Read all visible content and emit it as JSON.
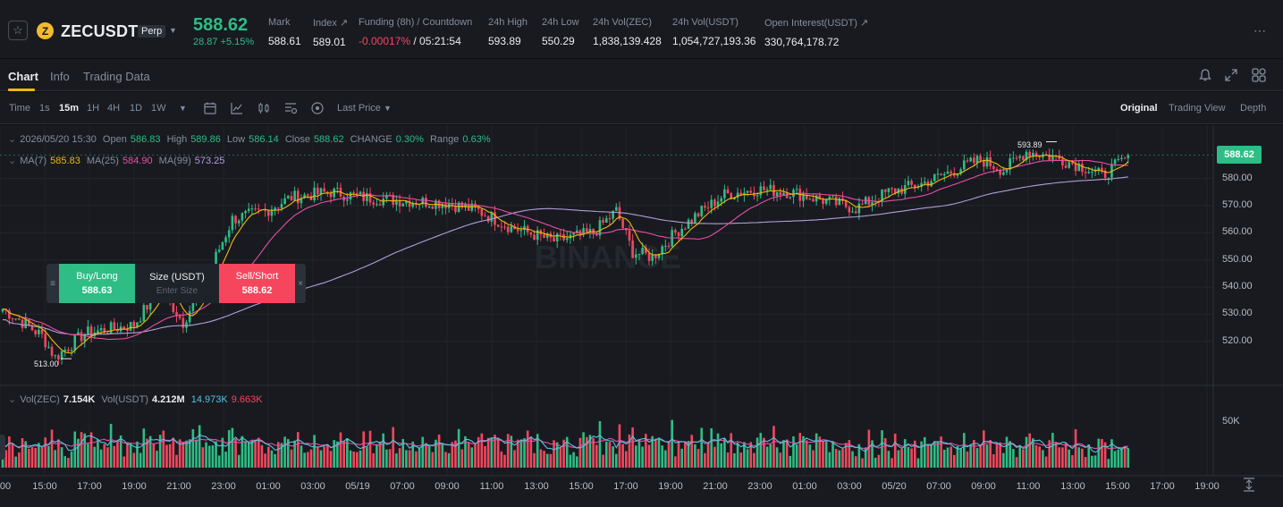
{
  "ticker": {
    "symbol": "ZECUSDT",
    "coin_letter": "Z",
    "perp_badge": "Perp",
    "last_price": "588.62",
    "change": "28.87 +5.15%",
    "stats": [
      {
        "label": "Mark",
        "value": "588.61"
      },
      {
        "label": "Index ↗",
        "value": "589.01"
      },
      {
        "label": "Funding (8h) / Countdown",
        "value_neg": "-0.00017%",
        "value": "/ 05:21:54"
      },
      {
        "label": "24h High",
        "value": "593.89"
      },
      {
        "label": "24h Low",
        "value": "550.29"
      },
      {
        "label": "24h Vol(ZEC)",
        "value": "1,838,139.428"
      },
      {
        "label": "24h Vol(USDT)",
        "value": "1,054,727,193.36"
      },
      {
        "label": "Open Interest(USDT) ↗",
        "value": "330,764,178.72"
      }
    ],
    "more": "⋯"
  },
  "tabs": [
    "Chart",
    "Info",
    "Trading Data"
  ],
  "toolbar": {
    "intervals": [
      "Time",
      "1s",
      "15m",
      "1H",
      "4H",
      "1D",
      "1W"
    ],
    "active_interval": "15m",
    "price_type": "Last Price",
    "views": [
      "Original",
      "Trading View",
      "Depth"
    ]
  },
  "ohlc": {
    "date": "2026/05/20 15:30",
    "open_label": "Open",
    "open": "586.83",
    "high_label": "High",
    "high": "589.86",
    "low_label": "Low",
    "low": "586.14",
    "close_label": "Close",
    "close": "588.62",
    "change_label": "CHANGE",
    "change": "0.30%",
    "range_label": "Range",
    "range": "0.63%"
  },
  "ma": {
    "ma7_label": "MA(7)",
    "ma7": "585.83",
    "ma25_label": "MA(25)",
    "ma25": "584.90",
    "ma99_label": "MA(99)",
    "ma99": "573.25"
  },
  "volume": {
    "zec_label": "Vol(ZEC)",
    "zec": "7.154K",
    "usdt_label": "Vol(USDT)",
    "usdt": "4.212M",
    "ma_a": "14.973K",
    "ma_b": "9.663K",
    "axis_label": "50K"
  },
  "order_widget": {
    "buy_label": "Buy/Long",
    "buy_price": "588.63",
    "size_label": "Size (USDT)",
    "size_placeholder": "Enter Size",
    "sell_label": "Sell/Short",
    "sell_price": "588.62",
    "grip": "≡",
    "close": "×"
  },
  "chart_data": {
    "type": "candlestick",
    "watermark": "BINANCE",
    "y_axis_ticks": [
      "580.00",
      "570.00",
      "560.00",
      "550.00",
      "540.00",
      "530.00",
      "520.00"
    ],
    "ylim": [
      512,
      595
    ],
    "current_price": "588.62",
    "high_marker": "593.89",
    "low_marker": "513.00",
    "x_tick_labels": [
      "00",
      "15:00",
      "17:00",
      "19:00",
      "21:00",
      "23:00",
      "01:00",
      "03:00",
      "05/19",
      "07:00",
      "09:00",
      "11:00",
      "13:00",
      "15:00",
      "17:00",
      "19:00",
      "21:00",
      "23:00",
      "01:00",
      "03:00",
      "05/20",
      "07:00",
      "09:00",
      "11:00",
      "13:00",
      "15:00",
      "17:00",
      "19:00"
    ],
    "close_anchors": [
      [
        0,
        532
      ],
      [
        12,
        522
      ],
      [
        16,
        514
      ],
      [
        25,
        523
      ],
      [
        40,
        526
      ],
      [
        48,
        540
      ],
      [
        55,
        527
      ],
      [
        62,
        543
      ],
      [
        70,
        565
      ],
      [
        80,
        568
      ],
      [
        88,
        573
      ],
      [
        100,
        575
      ],
      [
        110,
        573
      ],
      [
        120,
        572
      ],
      [
        135,
        571
      ],
      [
        145,
        568
      ],
      [
        155,
        562
      ],
      [
        168,
        557
      ],
      [
        180,
        560
      ],
      [
        187,
        568
      ],
      [
        192,
        553
      ],
      [
        198,
        551
      ],
      [
        205,
        560
      ],
      [
        212,
        567
      ],
      [
        220,
        574
      ],
      [
        230,
        576
      ],
      [
        240,
        575
      ],
      [
        250,
        572
      ],
      [
        260,
        569
      ],
      [
        270,
        575
      ],
      [
        280,
        578
      ],
      [
        288,
        582
      ],
      [
        298,
        587
      ],
      [
        305,
        583
      ],
      [
        312,
        590
      ],
      [
        320,
        588
      ],
      [
        330,
        584
      ],
      [
        335,
        581
      ],
      [
        343,
        588
      ]
    ],
    "volume_max": 50000
  },
  "colors": {
    "up": "#2ebd85",
    "down": "#f6465d",
    "ma7": "#f0b90b",
    "ma25": "#e84fa6",
    "ma99": "#b39ddb",
    "vol_ma_a": "#59c3e0",
    "vol_ma_b": "#e84fa6"
  }
}
